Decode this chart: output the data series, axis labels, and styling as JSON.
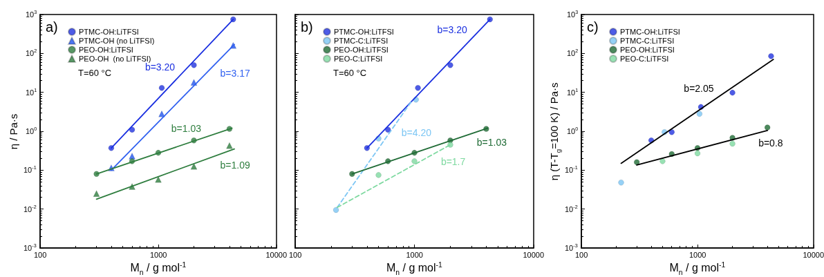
{
  "chart_data": [
    {
      "type": "scatter",
      "xlabel": "M$_{n}$ / g mol$^{-1}$",
      "ylabel": "η / Pa·s",
      "log": "xy",
      "legend": "top left",
      "grid": false,
      "xlim": [
        100,
        10000
      ],
      "xticks": [
        100,
        1000,
        10000
      ],
      "ylim": [
        0.001,
        1000
      ],
      "yticks": [
        {
          "value": 0.001,
          "label": "10$^{-3}$"
        },
        {
          "value": 0.01,
          "label": "10$^{-2}$"
        },
        {
          "value": 0.1,
          "label": "10$^{-1}$"
        },
        {
          "value": 1,
          "label": "10$^{0}$"
        },
        {
          "value": 10,
          "label": "10$^{1}$"
        },
        {
          "value": 100,
          "label": "10$^{2}$"
        },
        {
          "value": 1000,
          "label": "10$^{3}$"
        }
      ],
      "annotations": [
        "a)",
        "T=60 °C",
        {
          "text": "b=3.20",
          "x": 1500,
          "y": 26
        },
        {
          "text": "b=3.17",
          "x": 3000,
          "y": 52
        },
        {
          "text": "b=1.03",
          "x": 2500,
          "y": 0.7
        },
        {
          "text": "b=1.09",
          "x": 3000,
          "y": 0.23
        }
      ],
      "series": [
        {
          "name": "PTMC-OH:LiTFSI",
          "marker": "circle",
          "color": "#2233e0",
          "x": [
            400,
            600,
            1070,
            2000,
            4300
          ],
          "values": [
            0.37,
            1.1,
            13,
            50,
            750
          ]
        },
        {
          "name": "PTMC-OH (no LiTFSI)",
          "marker": "triangle",
          "color": "#2255ee",
          "x": [
            400,
            600,
            1070,
            2000,
            4300
          ],
          "values": [
            0.115,
            0.23,
            2.8,
            18,
            160
          ]
        },
        {
          "name": "PEO-OH:LiTFSI",
          "marker": "circle",
          "color": "#2e7d3e",
          "x": [
            300,
            600,
            1000,
            2000,
            4000
          ],
          "values": [
            0.08,
            0.17,
            0.28,
            0.58,
            1.15
          ]
        },
        {
          "name": "PEO-OH  (no LiTFSI)",
          "marker": "triangle",
          "color": "#2e7d3e",
          "x": [
            300,
            600,
            1000,
            2000,
            4000
          ],
          "values": [
            0.025,
            0.038,
            0.058,
            0.125,
            0.43
          ]
        },
        {
          "type": "line",
          "marker": "none",
          "line_style": "solid",
          "color": "#1a2fe0",
          "x": [
            400,
            4300
          ],
          "values": [
            0.37,
            750
          ]
        },
        {
          "type": "line",
          "marker": "none",
          "line_style": "solid",
          "color": "#3060f0",
          "x": [
            400,
            4400
          ],
          "values": [
            0.1,
            170
          ]
        },
        {
          "type": "line",
          "marker": "none",
          "line_style": "solid",
          "color": "#2e7d3e",
          "x": [
            300,
            4200
          ],
          "values": [
            0.08,
            1.2
          ]
        },
        {
          "type": "line",
          "marker": "none",
          "line_style": "solid",
          "color": "#2e7d3e",
          "x": [
            300,
            4400
          ],
          "values": [
            0.018,
            0.35
          ]
        }
      ]
    },
    {
      "type": "scatter",
      "xlabel": "M$_{n}$ / g mol$^{-1}$",
      "log": "xy",
      "legend": "top left",
      "grid": false,
      "tick_labels": "x",
      "xlim": [
        100,
        10000
      ],
      "xticks": [
        100,
        1000,
        10000
      ],
      "ylim": [
        0.001,
        1000
      ],
      "yticks": [
        0.001,
        0.01,
        0.1,
        1,
        10,
        100,
        1000
      ],
      "annotations": [
        "b)",
        "T=60 °C",
        {
          "text": "b=3.20",
          "x": 3000,
          "y": 240
        },
        {
          "text": "b=4.20",
          "x": 700,
          "y": 1.6
        },
        {
          "text": "b=1.03",
          "x": 3000,
          "y": 0.87
        },
        {
          "text": "b=1.7",
          "x": 1500,
          "y": 0.28
        }
      ],
      "series": [
        {
          "name": "PTMC-OH:LiTFSI",
          "marker": "circle",
          "color": "#2233e0",
          "x": [
            400,
            600,
            1070,
            2000,
            4300
          ],
          "values": [
            0.37,
            1.1,
            13,
            50,
            750
          ]
        },
        {
          "name": "PTMC-C:LiTFSI",
          "marker": "circle",
          "color": "#7cc6f4",
          "x": [
            220,
            500,
            1030
          ],
          "values": [
            0.0095,
            0.65,
            6.5
          ]
        },
        {
          "name": "PEO-OH:LiTFSI",
          "marker": "circle",
          "color": "#1f6b35",
          "x": [
            300,
            600,
            1000,
            2000,
            4000
          ],
          "values": [
            0.08,
            0.17,
            0.28,
            0.58,
            1.15
          ]
        },
        {
          "name": "PEO-C:LiTFSI",
          "marker": "circle",
          "color": "#7ed9a0",
          "x": [
            500,
            1000,
            2000
          ],
          "values": [
            0.075,
            0.17,
            0.45
          ]
        },
        {
          "type": "line",
          "marker": "none",
          "line_style": "solid",
          "color": "#1a2fe0",
          "x": [
            400,
            4300
          ],
          "values": [
            0.37,
            750
          ]
        },
        {
          "type": "line",
          "marker": "none",
          "line_style": "dashed",
          "color": "#7cc6f4",
          "x": [
            225,
            950
          ],
          "values": [
            0.011,
            6
          ]
        },
        {
          "type": "line",
          "marker": "none",
          "line_style": "solid",
          "color": "#1f6b35",
          "x": [
            300,
            4100
          ],
          "values": [
            0.08,
            1.2
          ]
        },
        {
          "type": "line",
          "marker": "none",
          "line_style": "dashed",
          "color": "#7ed9a0",
          "x": [
            225,
            2000
          ],
          "values": [
            0.011,
            0.45
          ]
        }
      ]
    },
    {
      "type": "scatter",
      "xlabel": "M$_{n}$ / g mol$^{-1}$",
      "ylabel": "η (T-T$_{g}$=100 K) / Pa·s",
      "log": "xy",
      "legend": "top left",
      "grid": false,
      "xlim": [
        100,
        10000
      ],
      "xticks": [
        100,
        1000,
        10000
      ],
      "ylim": [
        0.001,
        1000
      ],
      "yticks": [
        {
          "value": 0.001,
          "label": "10$^{-3}$"
        },
        {
          "value": 0.01,
          "label": "10$^{-2}$"
        },
        {
          "value": 0.1,
          "label": "10$^{-1}$"
        },
        {
          "value": 1,
          "label": "10$^{0}$"
        },
        {
          "value": 10,
          "label": "10$^{1}$"
        },
        {
          "value": 100,
          "label": "10$^{2}$"
        },
        {
          "value": 1000,
          "label": "10$^{3}$"
        }
      ],
      "annotations": [
        "c)",
        {
          "text": "b=2.05",
          "x": 1500,
          "y": 7.5
        },
        {
          "text": "b=0.8",
          "x": 3000,
          "y": 0.84
        }
      ],
      "series": [
        {
          "name": "PTMC-OH:LiTFSI",
          "marker": "circle",
          "color": "#2233e0",
          "x": [
            400,
            600,
            1070,
            2000,
            4300
          ],
          "values": [
            0.58,
            0.95,
            4.2,
            9.8,
            85
          ]
        },
        {
          "name": "PTMC-C:LiTFSI",
          "marker": "circle",
          "color": "#7cc6f4",
          "x": [
            220,
            520,
            1040
          ],
          "values": [
            0.048,
            0.95,
            2.8
          ]
        },
        {
          "name": "PEO-OH:LiTFSI",
          "marker": "circle",
          "color": "#1f6b35",
          "x": [
            300,
            600,
            1000,
            2000,
            4000
          ],
          "values": [
            0.16,
            0.26,
            0.37,
            0.68,
            1.25
          ]
        },
        {
          "name": "PEO-C:LiTFSI",
          "marker": "circle",
          "color": "#7ed9a0",
          "x": [
            500,
            1000,
            2000
          ],
          "values": [
            0.17,
            0.27,
            0.48
          ]
        },
        {
          "type": "line",
          "marker": "none",
          "line_style": "solid",
          "color": "#000000",
          "x": [
            220,
            4500
          ],
          "values": [
            0.15,
            70
          ]
        },
        {
          "type": "line",
          "marker": "none",
          "line_style": "solid",
          "color": "#000000",
          "x": [
            300,
            4000
          ],
          "values": [
            0.135,
            1.05
          ]
        }
      ]
    }
  ]
}
